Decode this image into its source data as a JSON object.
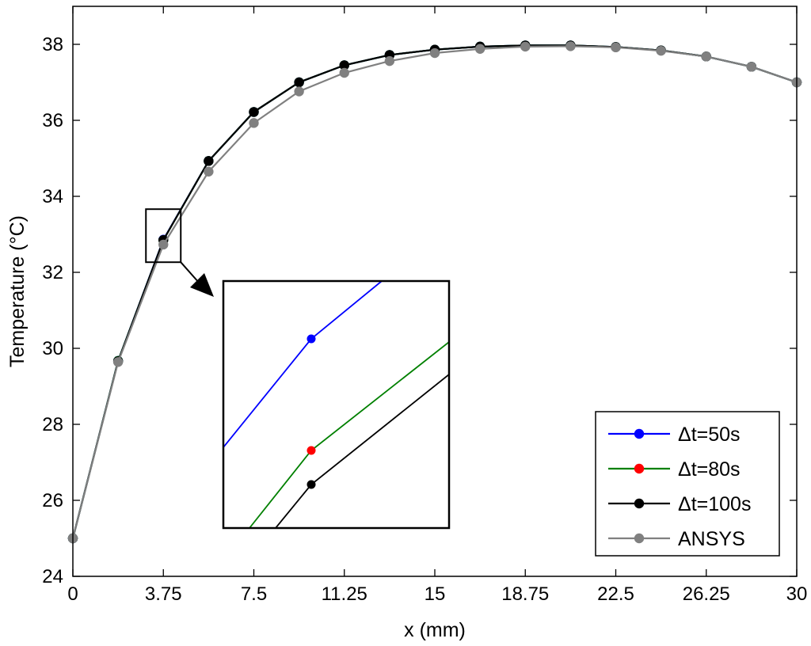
{
  "chart_data": {
    "type": "line",
    "xlabel": "x (mm)",
    "ylabel": "Temperature (°C)",
    "xlim": [
      0,
      30
    ],
    "ylim": [
      24,
      39
    ],
    "xticks": [
      0,
      3.75,
      7.5,
      11.25,
      15,
      18.75,
      22.5,
      26.25,
      30
    ],
    "xtick_labels": [
      "0",
      "3.75",
      "7.5",
      "11.25",
      "15",
      "18.75",
      "22.5",
      "26.25",
      "30"
    ],
    "yticks": [
      24,
      26,
      28,
      30,
      32,
      34,
      36,
      38
    ],
    "ytick_labels": [
      "24",
      "26",
      "28",
      "30",
      "32",
      "34",
      "36",
      "38"
    ],
    "grid": false,
    "legend_position": "bottom-right",
    "series": [
      {
        "name": "Δt=50s",
        "color": "#0000ff",
        "x": [
          0,
          1.875,
          3.75,
          5.625,
          7.5,
          9.375,
          11.25,
          13.125,
          15,
          16.875,
          18.75,
          20.625,
          22.5,
          24.375,
          26.25,
          28.125,
          30
        ],
        "y": [
          25.0,
          29.67,
          32.86,
          34.93,
          36.22,
          37.0,
          37.45,
          37.72,
          37.86,
          37.94,
          37.97,
          37.97,
          37.93,
          37.84,
          37.68,
          37.41,
          37.0
        ]
      },
      {
        "name": "Δt=80s",
        "color": "#008000",
        "x": [
          0,
          1.875,
          3.75,
          5.625,
          7.5,
          9.375,
          11.25,
          13.125,
          15,
          16.875,
          18.75,
          20.625,
          22.5,
          24.375,
          26.25,
          28.125,
          30
        ],
        "y": [
          25.0,
          29.67,
          32.85,
          34.93,
          36.22,
          37.0,
          37.45,
          37.72,
          37.86,
          37.94,
          37.97,
          37.97,
          37.93,
          37.84,
          37.68,
          37.41,
          37.0
        ]
      },
      {
        "name": "Δt=100s",
        "color": "#000000",
        "x": [
          0,
          1.875,
          3.75,
          5.625,
          7.5,
          9.375,
          11.25,
          13.125,
          15,
          16.875,
          18.75,
          20.625,
          22.5,
          24.375,
          26.25,
          28.125,
          30
        ],
        "y": [
          25.0,
          29.66,
          32.85,
          34.93,
          36.22,
          37.0,
          37.45,
          37.72,
          37.86,
          37.94,
          37.97,
          37.97,
          37.93,
          37.84,
          37.68,
          37.41,
          37.0
        ]
      },
      {
        "name": "ANSYS",
        "color": "#808080",
        "x": [
          0,
          1.875,
          3.75,
          5.625,
          7.5,
          9.375,
          11.25,
          13.125,
          15,
          16.875,
          18.75,
          20.625,
          22.5,
          24.375,
          26.25,
          28.125,
          30
        ],
        "y": [
          25.0,
          29.64,
          32.73,
          34.65,
          35.93,
          36.76,
          37.25,
          37.56,
          37.77,
          37.88,
          37.94,
          37.95,
          37.92,
          37.83,
          37.68,
          37.41,
          37.0
        ]
      }
    ],
    "inset": {
      "zoom_x": 3.75,
      "series_order": [
        "Δt=50s",
        "Δt=80s",
        "Δt=100s"
      ]
    }
  }
}
